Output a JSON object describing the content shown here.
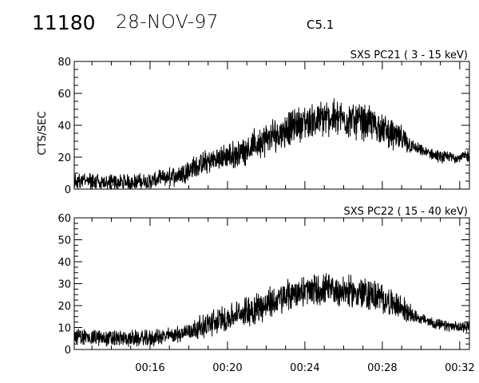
{
  "header": {
    "event_id": "11180",
    "date": "28-NOV-97",
    "flare_class": "C5.1"
  },
  "chart_data": [
    {
      "type": "line",
      "title": "SXS PC21  (  3 - 15 keV)",
      "xlabel": "",
      "ylabel": "CTS/SEC",
      "xlim": [
        "00:12:05",
        "00:32:30"
      ],
      "ylim": [
        0,
        80
      ],
      "yticks": [
        0,
        20,
        40,
        60,
        80
      ],
      "xticks": [
        "00:16",
        "00:20",
        "00:24",
        "00:28",
        "00:32"
      ],
      "show_xtick_labels": false,
      "grid": false,
      "profile": {
        "x": [
          "00:12:05",
          "00:14:00",
          "00:16:00",
          "00:17:30",
          "00:18:30",
          "00:19:30",
          "00:20:30",
          "00:21:30",
          "00:22:30",
          "00:23:30",
          "00:24:30",
          "00:25:30",
          "00:26:30",
          "00:27:30",
          "00:28:30",
          "00:29:00",
          "00:29:30",
          "00:30:00",
          "00:31:00",
          "00:32:00",
          "00:32:30"
        ],
        "y": [
          5,
          4,
          5,
          9,
          15,
          19,
          22,
          28,
          34,
          40,
          43,
          45,
          43,
          41,
          34,
          31,
          27,
          24,
          20,
          20,
          21
        ],
        "noise": [
          4,
          4,
          4,
          5,
          6,
          6,
          7,
          8,
          9,
          9,
          9,
          9,
          9,
          9,
          8,
          7,
          4,
          3,
          3,
          3,
          3
        ]
      }
    },
    {
      "type": "line",
      "title": "SXS PC22  ( 15 - 40 keV)",
      "xlabel": "",
      "ylabel": "",
      "xlim": [
        "00:12:05",
        "00:32:30"
      ],
      "ylim": [
        0,
        60
      ],
      "yticks": [
        0,
        10,
        20,
        30,
        40,
        50,
        60
      ],
      "xticks": [
        "00:16",
        "00:20",
        "00:24",
        "00:28",
        "00:32"
      ],
      "show_xtick_labels": true,
      "grid": false,
      "profile": {
        "x": [
          "00:12:05",
          "00:14:00",
          "00:16:00",
          "00:17:30",
          "00:18:30",
          "00:19:30",
          "00:20:30",
          "00:21:30",
          "00:22:30",
          "00:23:30",
          "00:24:30",
          "00:25:30",
          "00:26:30",
          "00:27:30",
          "00:28:30",
          "00:29:00",
          "00:29:30",
          "00:30:00",
          "00:31:00",
          "00:32:00",
          "00:32:30"
        ],
        "y": [
          6,
          5,
          5,
          7,
          10,
          13,
          16,
          19,
          22,
          26,
          27,
          27,
          26,
          25,
          21,
          19,
          16,
          14,
          11,
          10,
          11
        ],
        "noise": [
          3,
          3,
          3,
          3,
          4,
          5,
          5,
          6,
          6,
          6,
          6,
          6,
          6,
          6,
          5,
          5,
          3,
          2,
          2,
          2,
          2
        ]
      }
    }
  ]
}
